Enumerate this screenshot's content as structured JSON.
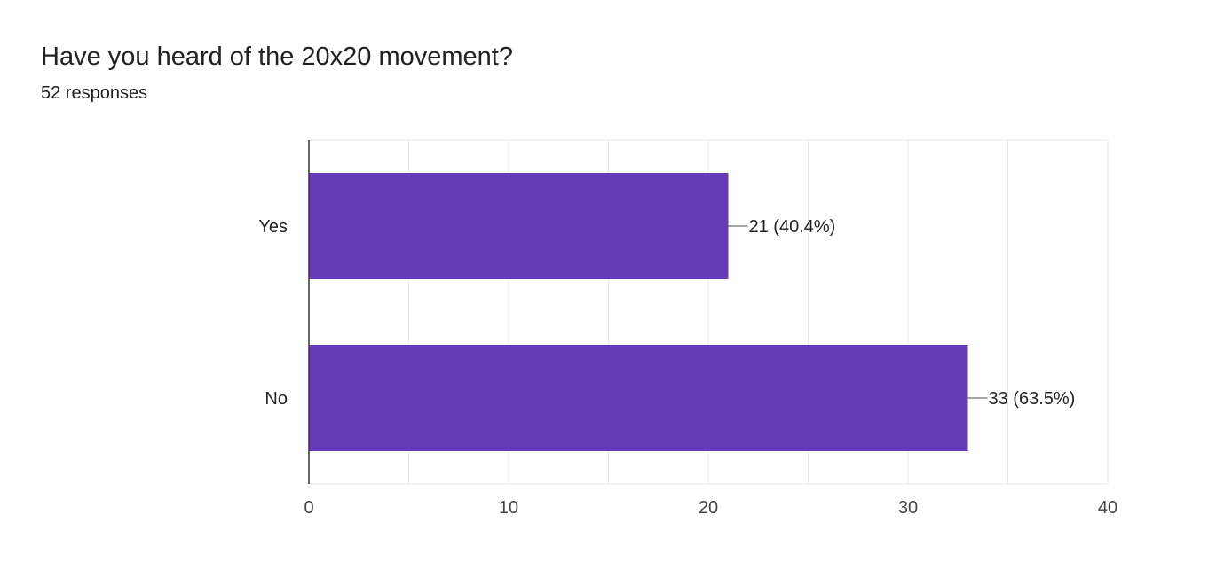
{
  "question": {
    "title": "Have you heard of the 20x20 movement?",
    "responses": "52 responses"
  },
  "colors": {
    "bar": "#673ab7",
    "grid": "#e8e8e8",
    "axis": "#333333",
    "leader": "#888888"
  },
  "chart_data": {
    "type": "bar",
    "orientation": "horizontal",
    "categories": [
      "Yes",
      "No"
    ],
    "values": [
      21,
      33
    ],
    "data_labels": [
      "21 (40.4%)",
      "33 (63.5%)"
    ],
    "xlim": [
      0,
      40
    ],
    "xticks": [
      0,
      10,
      20,
      30,
      40
    ],
    "grid": true
  }
}
